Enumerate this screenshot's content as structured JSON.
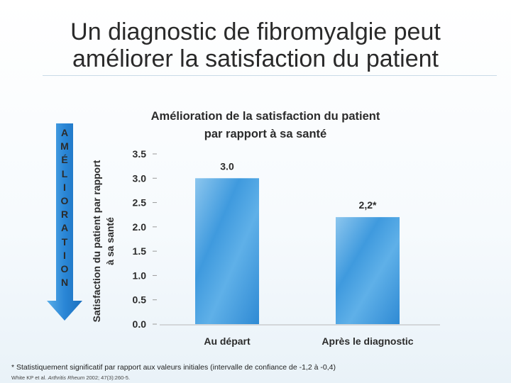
{
  "slide": {
    "title_line1": "Un diagnostic de fibromyalgie peut",
    "title_line2": "améliorer la satisfaction du patient"
  },
  "side_arrow": {
    "letters": [
      "A",
      "M",
      "É",
      "L",
      "I",
      "O",
      "R",
      "A",
      "T",
      "I",
      "O",
      "N"
    ],
    "color": "#1e7fd0"
  },
  "chart_data": {
    "type": "bar",
    "title_line1": "Amélioration de la satisfaction du patient",
    "title_line2": "par rapport à sa santé",
    "ylabel_line1": "Satisfaction du patient par rapport",
    "ylabel_line2": "à sa santé",
    "xlabel": "",
    "categories": [
      "Au départ",
      "Après le diagnostic"
    ],
    "values": [
      3.0,
      2.2
    ],
    "data_labels": [
      "3.0",
      "2,2*"
    ],
    "ylim": [
      0,
      3.5
    ],
    "yticks": [
      "0.0",
      "0.5",
      "1.0",
      "1.5",
      "2.0",
      "2.5",
      "3.0",
      "3.5"
    ],
    "grid": false,
    "bar_color": "#3f9ade"
  },
  "footnote": "* Statistiquement significatif par rapport aux valeurs initiales (intervalle de confiance de -1,2 à -0,4)",
  "citation": {
    "authors": "White KP et al. ",
    "journal": "Arthritis Rheum",
    "details": " 2002; 47(3):260-5."
  }
}
